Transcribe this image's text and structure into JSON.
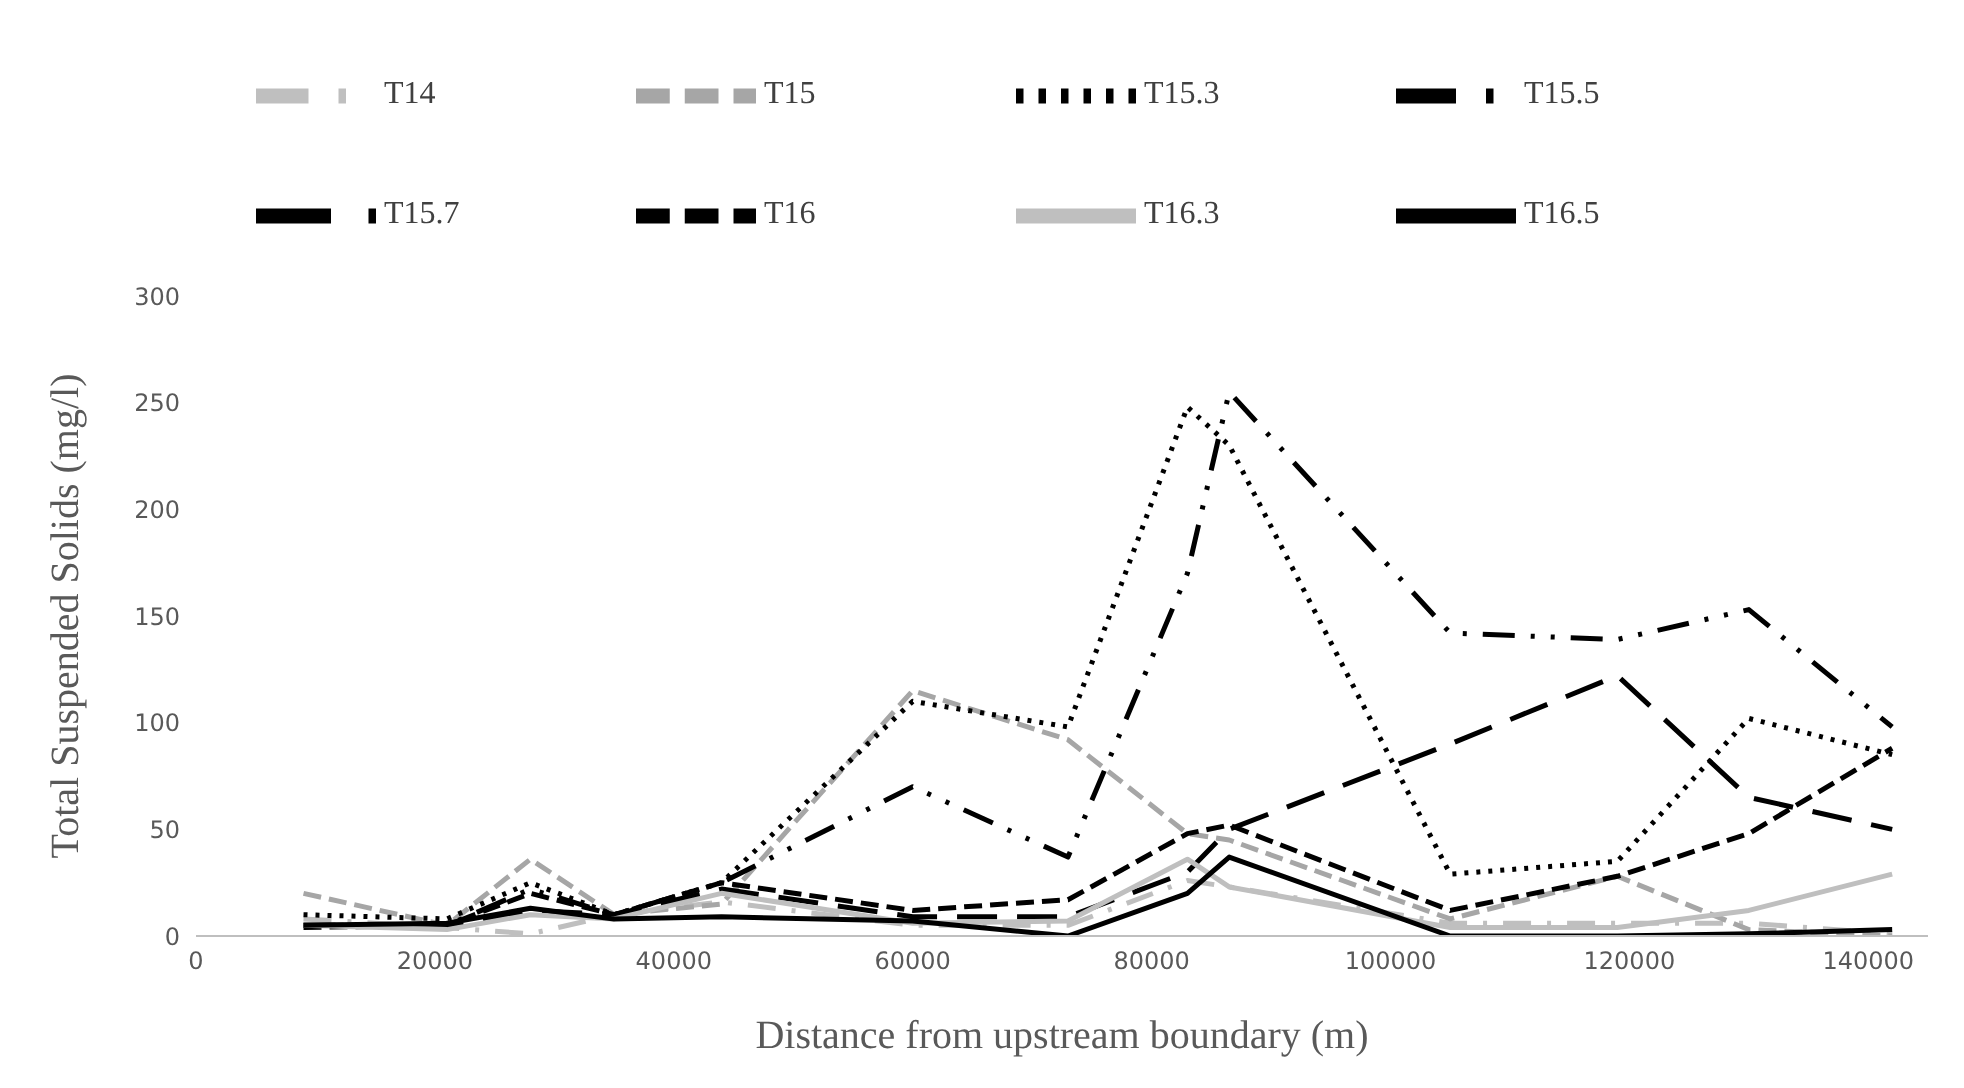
{
  "chart_data": {
    "type": "line",
    "xlabel": "Distance from upstream boundary (m)",
    "ylabel": "Total Suspended Solids  (mg/l)",
    "x": [
      9000,
      21000,
      28000,
      35000,
      44000,
      60000,
      73000,
      83000,
      86500,
      105000,
      119000,
      130000,
      142000
    ],
    "xlim": [
      0,
      145000
    ],
    "xticks": [
      0,
      20000,
      40000,
      60000,
      80000,
      100000,
      120000,
      140000
    ],
    "ylim": [
      0,
      300
    ],
    "yticks": [
      0,
      50,
      100,
      150,
      200,
      250,
      300
    ],
    "grid": false,
    "legend": "top",
    "marker": "none",
    "series": [
      {
        "name": "T14",
        "color": "#bfbfbf",
        "line_style": "dashdot",
        "values": [
          8,
          4,
          1,
          10,
          16,
          5,
          5,
          26,
          23,
          6,
          6,
          6,
          1
        ]
      },
      {
        "name": "T15",
        "color": "#a6a6a6",
        "line_style": "dashed",
        "values": [
          20,
          5,
          36,
          10,
          15,
          115,
          92,
          48,
          45,
          8,
          28,
          3,
          0
        ]
      },
      {
        "name": "T15.3",
        "color": "#000000",
        "line_style": "dotted",
        "values": [
          10,
          8,
          25,
          10,
          25,
          110,
          98,
          248,
          230,
          29,
          35,
          102,
          85
        ]
      },
      {
        "name": "T15.5",
        "color": "#000000",
        "line_style": "dashdotdot",
        "values": [
          5,
          5,
          22,
          10,
          25,
          70,
          37,
          170,
          255,
          142,
          139,
          153,
          98
        ]
      },
      {
        "name": "T15.7",
        "color": "#000000",
        "line_style": "longdash",
        "values": [
          5,
          5,
          12,
          10,
          22,
          9,
          9,
          30,
          50,
          90,
          122,
          65,
          50
        ]
      },
      {
        "name": "T16",
        "color": "#000000",
        "line_style": "dashed",
        "values": [
          4,
          5,
          20,
          10,
          25,
          12,
          17,
          48,
          52,
          12,
          28,
          48,
          88
        ]
      },
      {
        "name": "T16.3",
        "color": "#bfbfbf",
        "line_style": "solid",
        "values": [
          5,
          3,
          10,
          8,
          20,
          6,
          7,
          36,
          23,
          4,
          4,
          12,
          29
        ]
      },
      {
        "name": "T16.5",
        "color": "#000000",
        "line_style": "solid",
        "values": [
          5,
          6,
          13,
          8,
          9,
          7,
          0,
          20,
          37,
          0,
          0,
          1,
          3
        ]
      }
    ]
  }
}
